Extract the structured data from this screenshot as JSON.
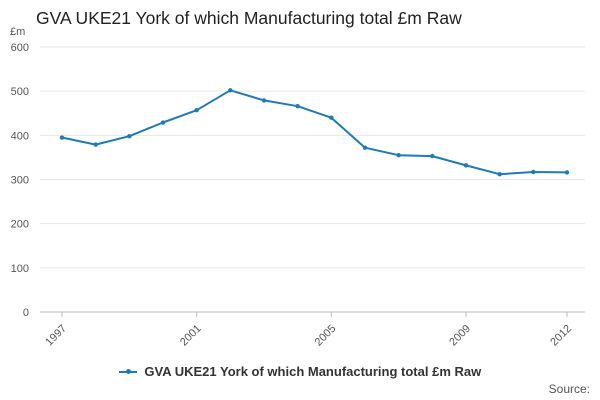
{
  "chart_data": {
    "type": "line",
    "title": "GVA UKE21 York of which Manufacturing total £m Raw",
    "ylabel": "£m",
    "xlabel": "",
    "ylim": [
      0,
      600
    ],
    "yticks": [
      0,
      100,
      200,
      300,
      400,
      500,
      600
    ],
    "xticks": [
      1997,
      2001,
      2005,
      2009,
      2012
    ],
    "grid": true,
    "legend_position": "bottom",
    "series": [
      {
        "name": "GVA UKE21 York of which Manufacturing total £m Raw",
        "color": "#1f7ab8",
        "x": [
          1997,
          1998,
          1999,
          2000,
          2001,
          2002,
          2003,
          2004,
          2005,
          2006,
          2007,
          2008,
          2009,
          2010,
          2011,
          2012
        ],
        "values": [
          395,
          379,
          398,
          429,
          457,
          502,
          479,
          466,
          440,
          372,
          355,
          353,
          332,
          312,
          317,
          316
        ]
      }
    ]
  },
  "source_label": "Source:"
}
